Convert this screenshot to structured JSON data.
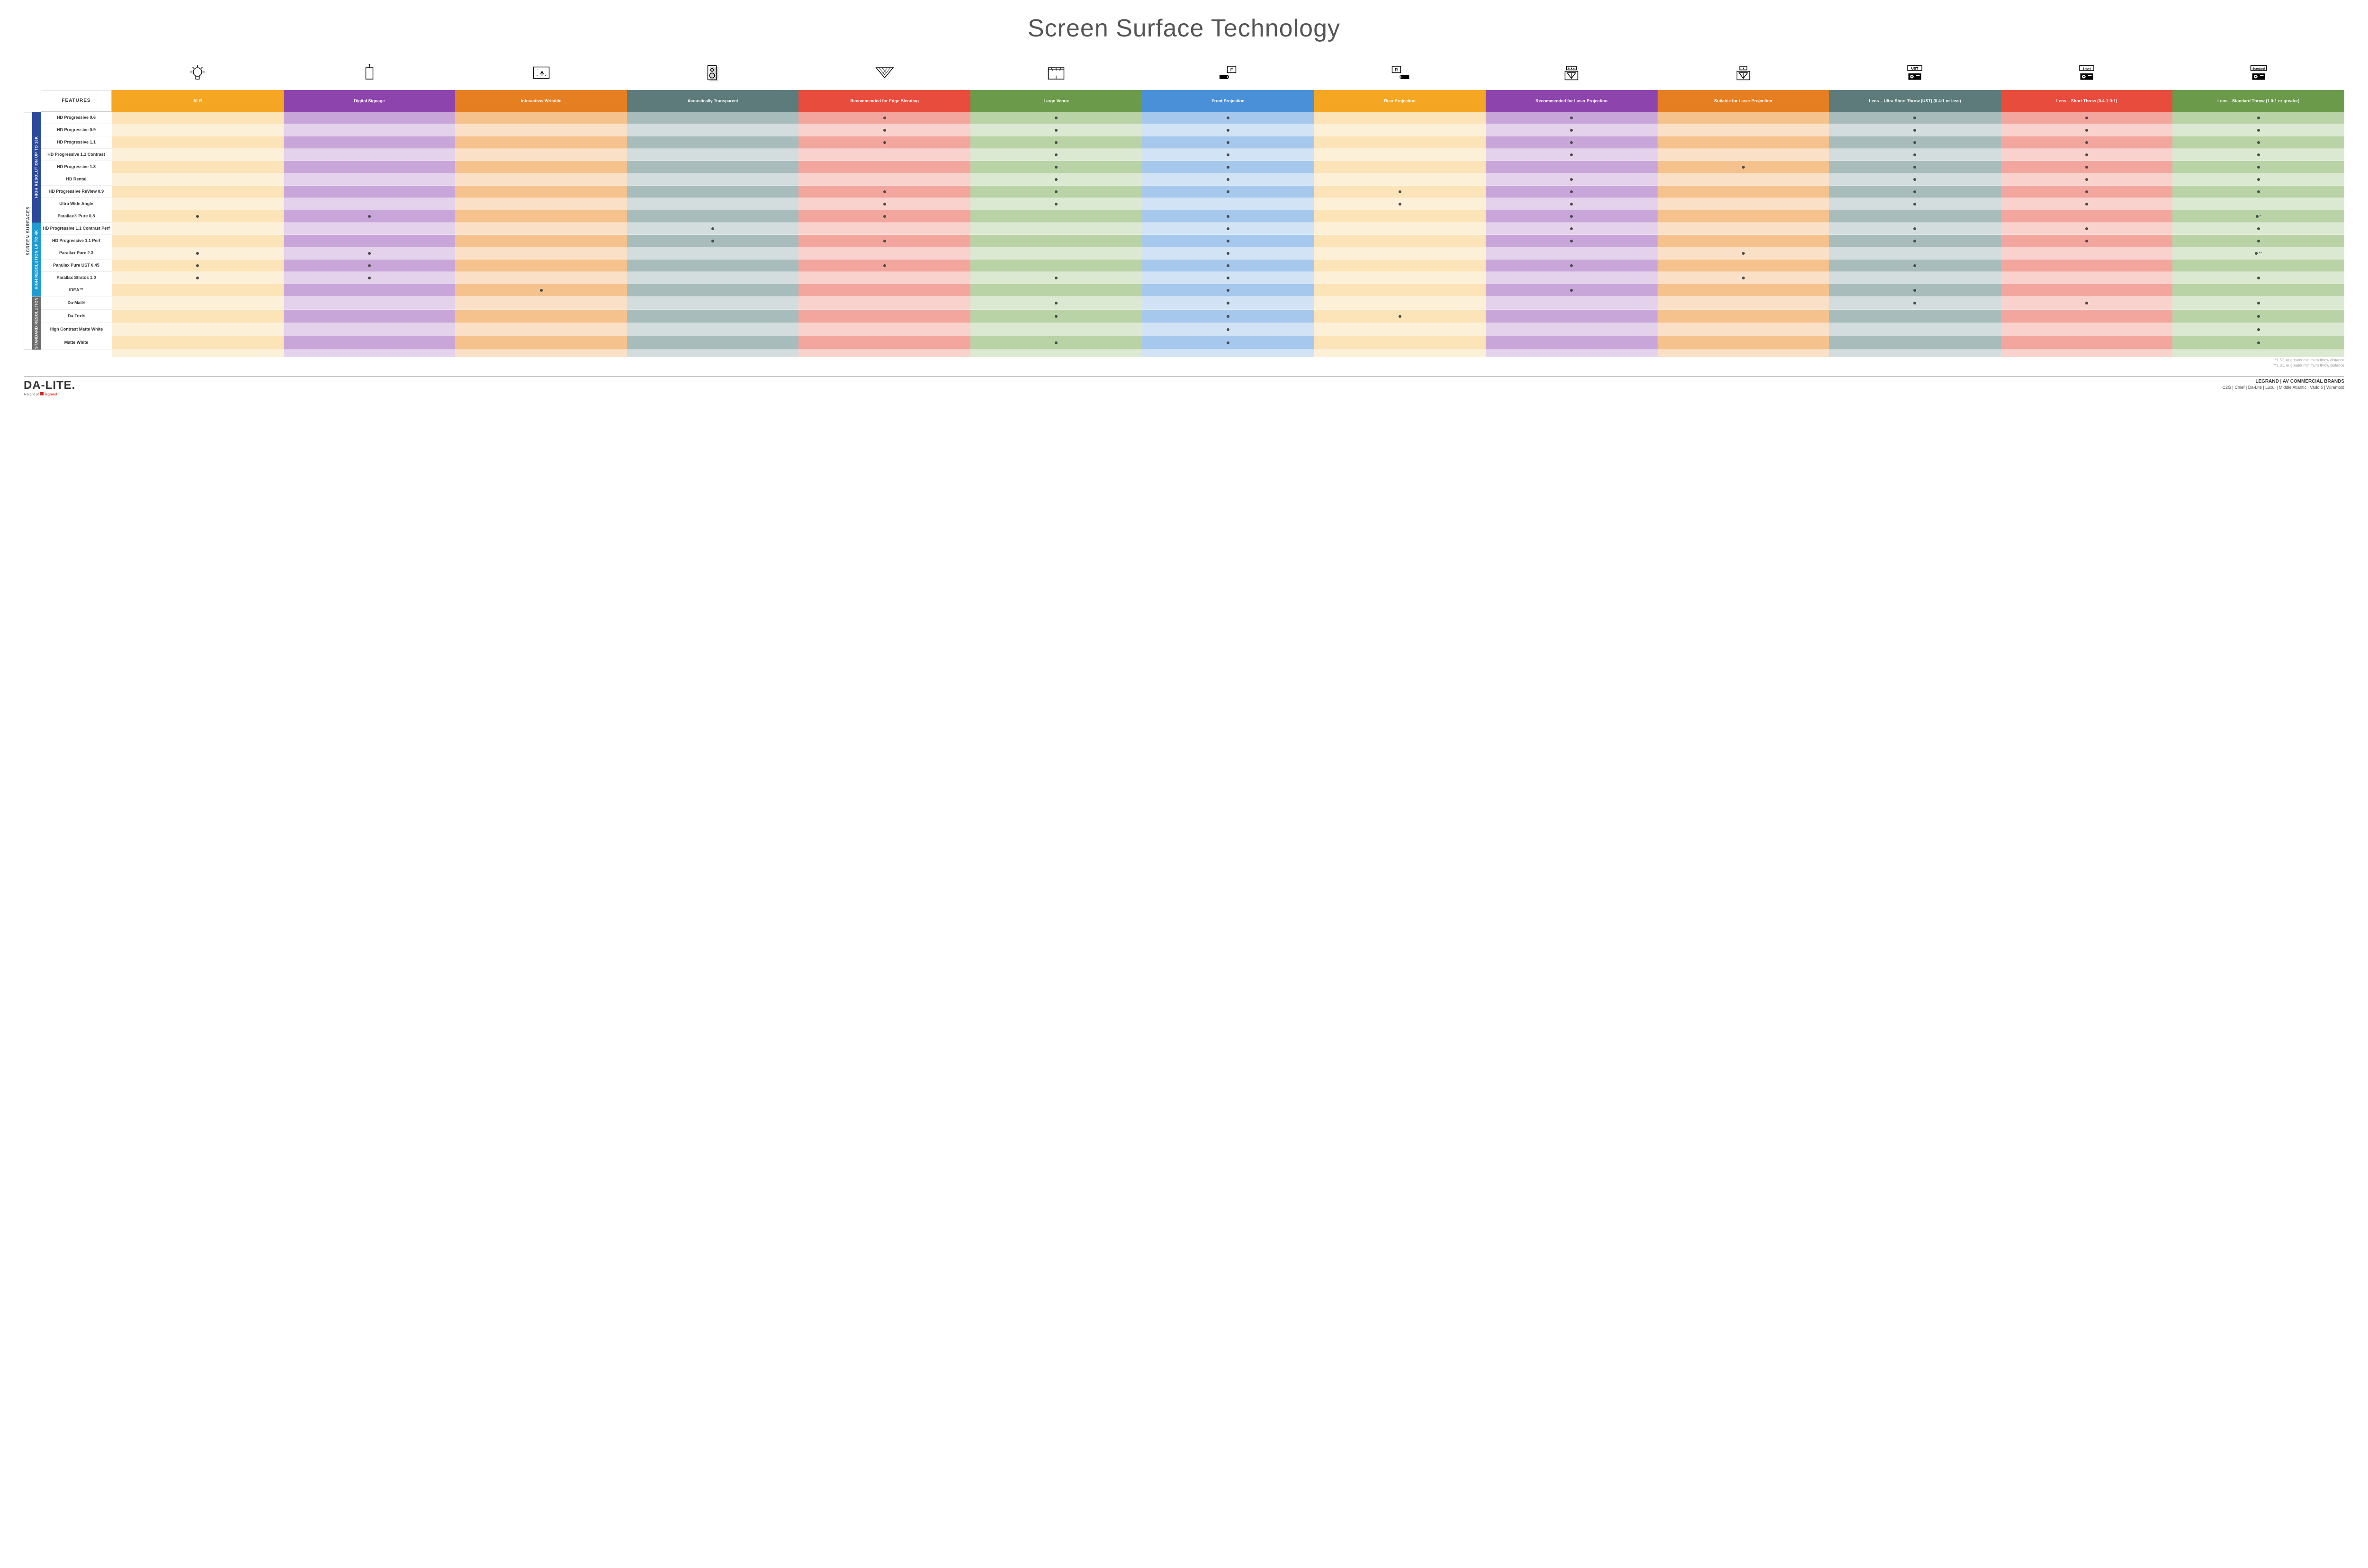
{
  "title": "Screen Surface Technology",
  "features_header": "FEATURES",
  "outer_label": "SCREEN SURFACES",
  "columns": [
    {
      "key": "alr",
      "label": "ALR",
      "color": "#f5a623",
      "light": "#fce3b8",
      "lighter": "#fdf0d8"
    },
    {
      "key": "signage",
      "label": "Digital Signage",
      "color": "#8e44ad",
      "light": "#c9a6d9",
      "lighter": "#e4d2ec"
    },
    {
      "key": "interactive",
      "label": "Interactive/ Writable",
      "color": "#e67e22",
      "light": "#f5c28e",
      "lighter": "#fae0c6"
    },
    {
      "key": "acoustic",
      "label": "Acoustically Transparent",
      "color": "#5d7b7b",
      "light": "#a8bcbc",
      "lighter": "#d3dddd"
    },
    {
      "key": "edge",
      "label": "Recommended for Edge Blending",
      "color": "#e74c3c",
      "light": "#f3a69e",
      "lighter": "#f9d2ce"
    },
    {
      "key": "large",
      "label": "Large Venue",
      "color": "#6b9b4a",
      "light": "#b9d3a6",
      "lighter": "#dce9d2"
    },
    {
      "key": "front",
      "label": "Front Projection",
      "color": "#4a90d9",
      "light": "#a6c8ec",
      "lighter": "#d2e3f5"
    },
    {
      "key": "rear",
      "label": "Rear Projection",
      "color": "#f5a623",
      "light": "#fce3b8",
      "lighter": "#fdf0d8"
    },
    {
      "key": "reclaser",
      "label": "Recommended for Laser Projection",
      "color": "#8e44ad",
      "light": "#c9a6d9",
      "lighter": "#e4d2ec"
    },
    {
      "key": "suitlaser",
      "label": "Suitable for Laser Projection",
      "color": "#e67e22",
      "light": "#f5c28e",
      "lighter": "#fae0c6"
    },
    {
      "key": "ust",
      "label": "Lens – Ultra Short Throw (UST) (0.4:1 or less)",
      "color": "#5d7b7b",
      "light": "#a8bcbc",
      "lighter": "#d3dddd"
    },
    {
      "key": "short",
      "label": "Lens – Short Throw (0.4-1.0:1)",
      "color": "#e74c3c",
      "light": "#f3a69e",
      "lighter": "#f9d2ce"
    },
    {
      "key": "std",
      "label": "Lens – Standard Throw (1.0:1 or greater)",
      "color": "#6b9b4a",
      "light": "#b9d3a6",
      "lighter": "#dce9d2"
    }
  ],
  "categories": [
    {
      "label": "HIGH RESOLUTION UP TO 16K",
      "color": "#2b4a9b",
      "rows": [
        {
          "label": "HD Progressive 0.6",
          "dots": [
            "edge",
            "large",
            "front",
            "reclaser",
            "ust",
            "short",
            "std"
          ]
        },
        {
          "label": "HD Progressive 0.9",
          "dots": [
            "edge",
            "large",
            "front",
            "reclaser",
            "ust",
            "short",
            "std"
          ]
        },
        {
          "label": "HD Progressive 1.1",
          "dots": [
            "edge",
            "large",
            "front",
            "reclaser",
            "ust",
            "short",
            "std"
          ]
        },
        {
          "label": "HD Progressive 1.1 Contrast",
          "dots": [
            "large",
            "front",
            "reclaser",
            "ust",
            "short",
            "std"
          ]
        },
        {
          "label": "HD Progressive 1.3",
          "dots": [
            "large",
            "front",
            "suitlaser",
            "ust",
            "short",
            "std"
          ]
        },
        {
          "label": "HD Rental",
          "dots": [
            "large",
            "front",
            "reclaser",
            "ust",
            "short",
            "std"
          ]
        },
        {
          "label": "HD Progressive ReView 0.9",
          "dots": [
            "edge",
            "large",
            "front",
            "rear",
            "reclaser",
            "ust",
            "short",
            "std"
          ]
        },
        {
          "label": "Ultra Wide Angle",
          "dots": [
            "edge",
            "large",
            "rear",
            "reclaser",
            "ust",
            "short"
          ]
        },
        {
          "label": "Parallax® Pure 0.8",
          "dots": [
            "alr",
            "signage",
            "edge",
            "front",
            "reclaser",
            "std"
          ],
          "suffix": {
            "std": "*"
          }
        }
      ]
    },
    {
      "label": "HIGH RESOLUTION UP TO 4K",
      "color": "#1f9bd1",
      "rows": [
        {
          "label": "HD Progressive 1.1 Contrast Perf",
          "dots": [
            "acoustic",
            "front",
            "reclaser",
            "ust",
            "short",
            "std"
          ]
        },
        {
          "label": "HD Progressive 1.1 Perf",
          "dots": [
            "acoustic",
            "edge",
            "front",
            "reclaser",
            "ust",
            "short",
            "std"
          ]
        },
        {
          "label": "Parallax Pure 2.3",
          "dots": [
            "alr",
            "signage",
            "front",
            "suitlaser",
            "std"
          ],
          "suffix": {
            "std": "**"
          }
        },
        {
          "label": "Parallax Pure UST 0.45",
          "dots": [
            "alr",
            "signage",
            "edge",
            "front",
            "reclaser",
            "ust"
          ]
        },
        {
          "label": "Parallax Stratos 1.0",
          "dots": [
            "alr",
            "signage",
            "large",
            "front",
            "suitlaser",
            "std"
          ]
        },
        {
          "label": "IDEA™",
          "dots": [
            "interactive",
            "front",
            "reclaser",
            "ust"
          ]
        }
      ]
    },
    {
      "label": "STANDARD RESOLUTION",
      "color": "#6b6b6b",
      "rows": [
        {
          "label": "Da-Mat®",
          "dots": [
            "large",
            "front",
            "ust",
            "short",
            "std"
          ]
        },
        {
          "label": "Da-Tex®",
          "dots": [
            "large",
            "front",
            "rear",
            "std"
          ]
        },
        {
          "label": "High Contrast Matte White",
          "dots": [
            "front",
            "std"
          ]
        },
        {
          "label": "Matte White",
          "dots": [
            "large",
            "front",
            "std"
          ]
        }
      ]
    }
  ],
  "footnotes": [
    "*1.5:1 or greater minimum throw distance",
    "**1.8:1 or greater minimum throw distance"
  ],
  "footer": {
    "logo_main": "DA-LITE.",
    "logo_sub_prefix": "A brand of ",
    "logo_sub_brand": "legrand",
    "brands_title": "LEGRAND | AV COMMERCIAL BRANDS",
    "brands_list": "C2G  |  Chief  |  Da-Lite  |  Luxul  |  Middle Atlantic  |  Vaddio  |  Wiremold"
  },
  "icons": [
    "bulb",
    "signage",
    "touch",
    "speaker",
    "blend",
    "venue",
    "front",
    "rear",
    "reclaser",
    "suitlaser",
    "ust",
    "short",
    "standard"
  ]
}
